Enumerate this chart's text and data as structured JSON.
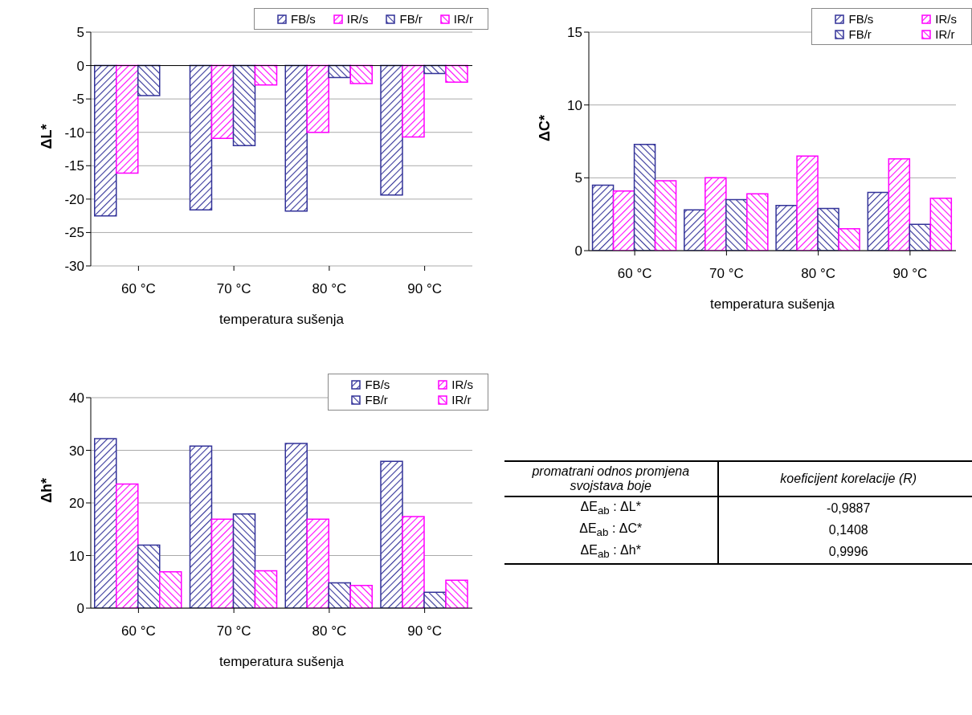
{
  "chart_data": [
    {
      "type": "bar",
      "xlabel": "temperatura sušenja",
      "ylabel": "ΔL*",
      "categories": [
        "60 °C",
        "70 °C",
        "80 °C",
        "90 °C"
      ],
      "ylim": [
        -30,
        5
      ],
      "yticks": [
        -30,
        -25,
        -20,
        -15,
        -10,
        -5,
        0,
        5
      ],
      "grid": "y",
      "legend": "top right",
      "series": [
        {
          "name": "FB/s",
          "color": "#333399",
          "values": [
            -22.5,
            -21.6,
            -21.8,
            -19.4
          ]
        },
        {
          "name": "IR/s",
          "color": "#ff00ff",
          "values": [
            -16.1,
            -10.9,
            -10.0,
            -10.7
          ]
        },
        {
          "name": "FB/r",
          "color": "#333399",
          "values": [
            -4.5,
            -12.0,
            -1.8,
            -1.2
          ]
        },
        {
          "name": "IR/r",
          "color": "#ff00ff",
          "values": [
            null,
            -2.9,
            -2.7,
            -2.5
          ]
        }
      ]
    },
    {
      "type": "bar",
      "xlabel": "temperatura sušenja",
      "ylabel": "ΔC*",
      "categories": [
        "60 °C",
        "70 °C",
        "80 °C",
        "90 °C"
      ],
      "ylim": [
        0,
        15
      ],
      "yticks": [
        0,
        5,
        10,
        15
      ],
      "grid": "y",
      "legend": "top right",
      "series": [
        {
          "name": "FB/s",
          "color": "#333399",
          "values": [
            4.5,
            2.8,
            3.1,
            4.0
          ]
        },
        {
          "name": "IR/s",
          "color": "#ff00ff",
          "values": [
            4.1,
            5.0,
            6.5,
            6.3
          ]
        },
        {
          "name": "FB/r",
          "color": "#333399",
          "values": [
            7.3,
            3.5,
            2.9,
            1.8
          ]
        },
        {
          "name": "IR/r",
          "color": "#ff00ff",
          "values": [
            4.8,
            3.9,
            1.5,
            3.6
          ]
        }
      ]
    },
    {
      "type": "bar",
      "xlabel": "temperatura sušenja",
      "ylabel": "Δh*",
      "categories": [
        "60 °C",
        "70 °C",
        "80 °C",
        "90 °C"
      ],
      "ylim": [
        0,
        40
      ],
      "yticks": [
        0,
        10,
        20,
        30,
        40
      ],
      "grid": "y",
      "legend": "top right",
      "series": [
        {
          "name": "FB/s",
          "color": "#333399",
          "values": [
            32.2,
            30.8,
            31.3,
            27.9
          ]
        },
        {
          "name": "IR/s",
          "color": "#ff00ff",
          "values": [
            23.6,
            16.9,
            16.9,
            17.4
          ]
        },
        {
          "name": "FB/r",
          "color": "#333399",
          "values": [
            12.0,
            17.9,
            4.8,
            3.0
          ]
        },
        {
          "name": "IR/r",
          "color": "#ff00ff",
          "values": [
            6.9,
            7.1,
            4.3,
            5.3
          ]
        }
      ]
    },
    {
      "type": "other",
      "annotations": [
        "promatrani odnos promjena svojstava boje",
        "koeficijent korelacije (R)"
      ],
      "categories": [
        "ΔE$_{ab}$ : ΔL*",
        "ΔE$_{ab}$ : ΔC*",
        "ΔE$_{ab}$ : Δh*"
      ],
      "value_labels": [
        "-0,9887",
        "0,1408",
        "0,9996"
      ]
    }
  ]
}
